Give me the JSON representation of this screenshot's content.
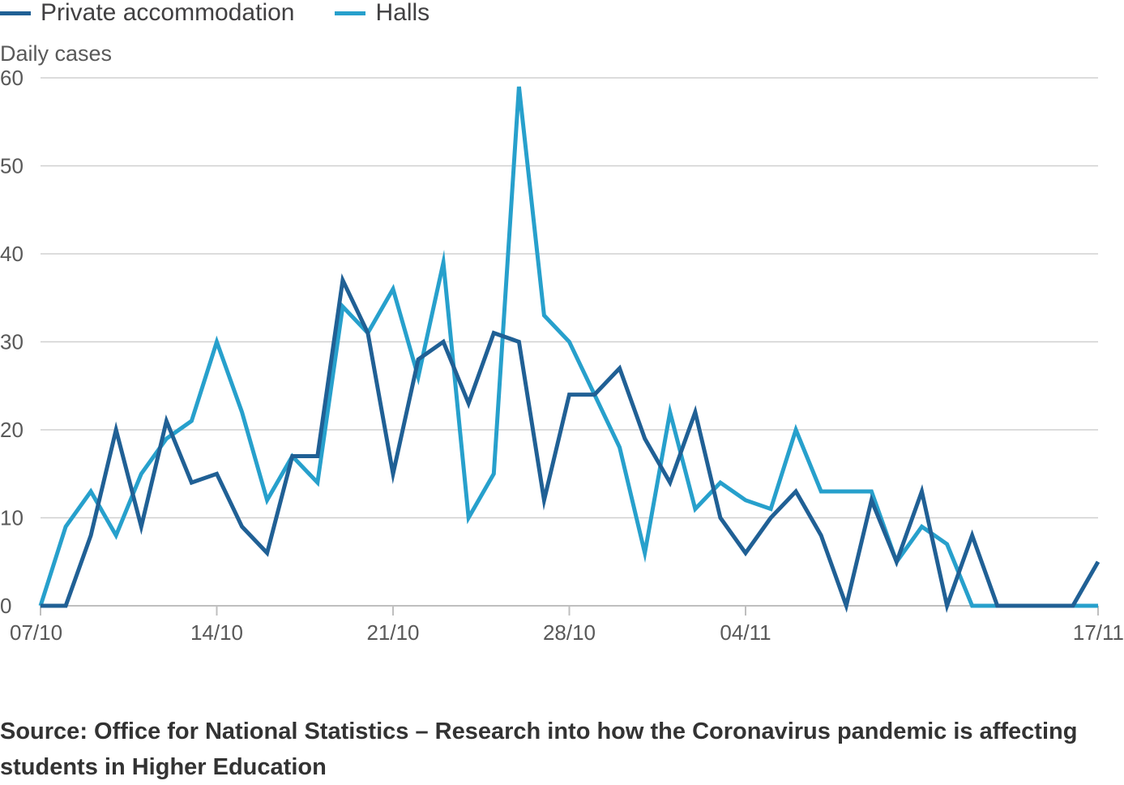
{
  "chart_data": {
    "type": "line",
    "title": "",
    "xlabel": "",
    "ylabel": "Daily cases",
    "ylim": [
      0,
      60
    ],
    "yticks": [
      0,
      10,
      20,
      30,
      40,
      50,
      60
    ],
    "x_start": "07/10",
    "x_end": "17/11",
    "x_tick_labels": [
      "07/10",
      "14/10",
      "21/10",
      "28/10",
      "04/11",
      "17/11"
    ],
    "grid": "horizontal",
    "legend_placement": "top-left",
    "series": [
      {
        "name": "Private accommodation",
        "color": "#206095",
        "values": [
          0,
          0,
          8,
          20,
          9,
          21,
          14,
          15,
          9,
          6,
          17,
          17,
          37,
          31,
          15,
          28,
          30,
          23,
          31,
          30,
          12,
          24,
          24,
          27,
          19,
          14,
          22,
          10,
          6,
          10,
          13,
          8,
          0,
          12,
          5,
          13,
          0,
          8,
          0,
          0,
          0,
          0,
          5
        ]
      },
      {
        "name": "Halls",
        "color": "#27a0cc",
        "values": [
          0,
          9,
          13,
          8,
          15,
          19,
          21,
          30,
          22,
          12,
          17,
          14,
          34,
          31,
          36,
          26,
          39,
          10,
          15,
          59,
          33,
          30,
          24,
          18,
          6,
          22,
          11,
          14,
          12,
          11,
          20,
          13,
          13,
          13,
          5,
          9,
          7,
          0,
          0,
          0,
          0,
          0,
          0
        ]
      }
    ]
  },
  "legend": {
    "items": [
      {
        "label": "Private accommodation",
        "color": "#206095"
      },
      {
        "label": "Halls",
        "color": "#27a0cc"
      }
    ]
  },
  "source": "Source: Office for National Statistics – Research into how the Coronavirus pandemic is affecting students in Higher Education"
}
